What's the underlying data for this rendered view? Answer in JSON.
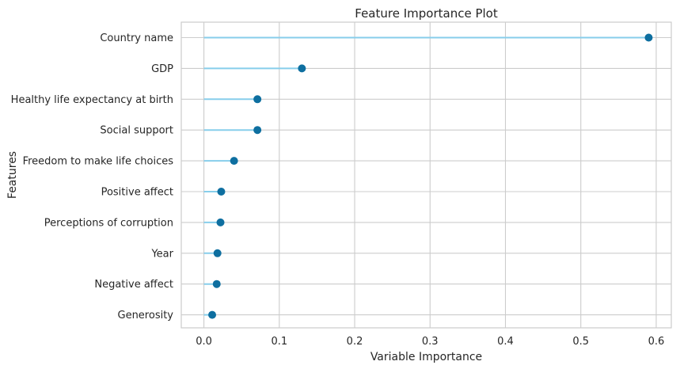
{
  "chart_data": {
    "type": "lollipop",
    "orientation": "horizontal",
    "title": "Feature Importance Plot",
    "xlabel": "Variable Importance",
    "ylabel": "Features",
    "xlim": [
      -0.03,
      0.62
    ],
    "xticks": [
      0.0,
      0.1,
      0.2,
      0.3,
      0.4,
      0.5,
      0.6
    ],
    "xtick_labels": [
      "0.0",
      "0.1",
      "0.2",
      "0.3",
      "0.4",
      "0.5",
      "0.6"
    ],
    "grid": true,
    "categories": [
      "Country name",
      "GDP",
      "Healthy life expectancy at birth",
      "Social support",
      "Freedom to make life choices",
      "Positive affect",
      "Perceptions of corruption",
      "Year",
      "Negative affect",
      "Generosity"
    ],
    "values": [
      0.59,
      0.13,
      0.071,
      0.071,
      0.04,
      0.023,
      0.022,
      0.018,
      0.017,
      0.011
    ],
    "colors": {
      "stem": "#87ceeb",
      "marker": "#0e6fa0",
      "grid": "#cccccc",
      "frame": "#cccccc",
      "background": "#ffffff"
    }
  }
}
